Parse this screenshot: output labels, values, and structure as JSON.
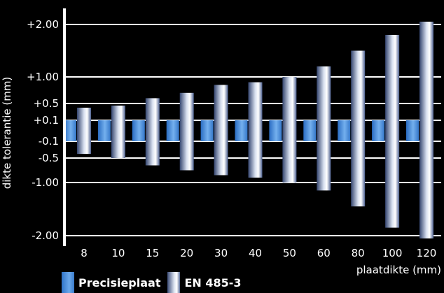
{
  "chart_data": {
    "type": "bar",
    "ylabel": "dikte tolerantie (mm)",
    "xlabel": "plaatdikte (mm)",
    "categories": [
      "8",
      "10",
      "15",
      "20",
      "30",
      "40",
      "50",
      "60",
      "80",
      "100",
      "120"
    ],
    "ytick_labels": [
      "+2.00",
      "+1.00",
      "+0.5",
      "+0.1",
      "-0.1",
      "-0.5",
      "-1.00",
      "-2.00"
    ],
    "ytick_values": [
      2.0,
      1.0,
      0.5,
      0.1,
      -0.1,
      -0.5,
      -1.0,
      -2.0
    ],
    "series": [
      {
        "name": "Precisieplaat",
        "color": "#4f90dc",
        "upper": [
          0.1,
          0.1,
          0.1,
          0.1,
          0.1,
          0.1,
          0.1,
          0.1,
          0.1,
          0.1,
          0.1
        ],
        "lower": [
          -0.1,
          -0.1,
          -0.1,
          -0.1,
          -0.1,
          -0.1,
          -0.1,
          -0.1,
          -0.1,
          -0.1,
          -0.1
        ]
      },
      {
        "name": "EN 485-3",
        "color": "#c9d3e6",
        "upper": [
          0.4,
          0.45,
          0.6,
          0.7,
          0.85,
          0.9,
          1.0,
          1.2,
          1.5,
          1.8,
          2.1
        ],
        "lower": [
          -0.4,
          -0.5,
          -0.65,
          -0.75,
          -0.85,
          -0.9,
          -1.0,
          -1.15,
          -1.45,
          -1.85,
          -2.1
        ]
      }
    ],
    "grid": true,
    "legend_position": "bottom-left"
  }
}
